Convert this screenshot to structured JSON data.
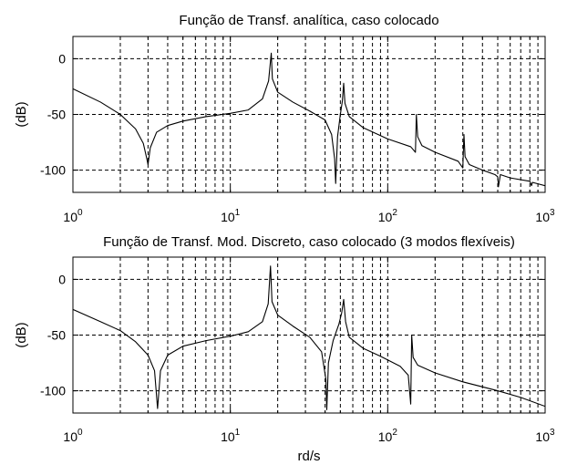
{
  "chart_data": [
    {
      "type": "line",
      "title": "Função de Transf. analítica, caso colocado",
      "xlabel": "",
      "ylabel": "(dB)",
      "xscale": "log",
      "xlim": [
        1,
        1000
      ],
      "ylim": [
        -120,
        20
      ],
      "xticks": [
        {
          "base": "10",
          "exp": "0",
          "value": 1
        },
        {
          "base": "10",
          "exp": "1",
          "value": 10
        },
        {
          "base": "10",
          "exp": "2",
          "value": 100
        },
        {
          "base": "10",
          "exp": "3",
          "value": 1000
        }
      ],
      "yticks": [
        {
          "label": "0",
          "value": 0
        },
        {
          "label": "-50",
          "value": -50
        },
        {
          "label": "-100",
          "value": -100
        }
      ],
      "grid": true,
      "series": [
        {
          "name": "",
          "x": [
            1,
            1.5,
            2,
            2.5,
            2.8,
            2.95,
            3.0,
            3.1,
            3.4,
            4,
            5,
            7,
            10,
            13,
            16,
            17.5,
            18.2,
            18.5,
            20,
            25,
            32,
            40,
            44,
            46,
            46.7,
            48,
            50,
            51.5,
            52.5,
            53.5,
            57,
            70,
            100,
            140,
            150,
            152,
            155,
            165,
            200,
            280,
            300,
            305,
            310,
            330,
            400,
            480,
            500,
            505,
            520,
            600,
            800,
            820,
            830,
            1000
          ],
          "y": [
            -27,
            -39,
            -50,
            -63,
            -76,
            -90,
            -95,
            -80,
            -66,
            -60,
            -56,
            -52,
            -49,
            -46,
            -36,
            -20,
            5,
            -18,
            -30,
            -39,
            -47,
            -55,
            -68,
            -90,
            -112,
            -70,
            -50,
            -38,
            -22,
            -40,
            -52,
            -62,
            -72,
            -79,
            -84,
            -50,
            -70,
            -78,
            -84,
            -92,
            -98,
            -68,
            -88,
            -95,
            -100,
            -104,
            -106,
            -115,
            -104,
            -107,
            -110,
            -114,
            -111,
            -114
          ]
        }
      ]
    },
    {
      "type": "line",
      "title": "Função de Transf. Mod. Discreto, caso colocado (3 modos flexíveis)",
      "xlabel": "rd/s",
      "ylabel": "(dB)",
      "xscale": "log",
      "xlim": [
        1,
        1000
      ],
      "ylim": [
        -120,
        20
      ],
      "xticks": [
        {
          "base": "10",
          "exp": "0",
          "value": 1
        },
        {
          "base": "10",
          "exp": "1",
          "value": 10
        },
        {
          "base": "10",
          "exp": "2",
          "value": 100
        },
        {
          "base": "10",
          "exp": "3",
          "value": 1000
        }
      ],
      "yticks": [
        {
          "label": "0",
          "value": 0
        },
        {
          "label": "-50",
          "value": -50
        },
        {
          "label": "-100",
          "value": -100
        }
      ],
      "grid": true,
      "series": [
        {
          "name": "",
          "x": [
            1,
            1.5,
            2,
            2.5,
            3.0,
            3.3,
            3.45,
            3.6,
            4,
            5,
            7,
            10,
            13,
            16,
            17.4,
            18.0,
            18.4,
            20,
            25,
            32,
            38,
            40.5,
            41,
            42,
            45,
            49,
            51,
            52.5,
            54,
            57,
            70,
            90,
            120,
            135,
            140,
            142,
            145,
            155,
            200,
            300,
            500,
            700,
            1000
          ],
          "y": [
            -27,
            -38,
            -46,
            -56,
            -68,
            -82,
            -116,
            -82,
            -68,
            -60,
            -55,
            -51,
            -47,
            -38,
            -22,
            12,
            -20,
            -32,
            -42,
            -52,
            -65,
            -90,
            -117,
            -75,
            -55,
            -40,
            -30,
            -18,
            -38,
            -52,
            -62,
            -69,
            -78,
            -86,
            -112,
            -50,
            -70,
            -77,
            -84,
            -92,
            -100,
            -106,
            -114
          ]
        }
      ]
    }
  ]
}
